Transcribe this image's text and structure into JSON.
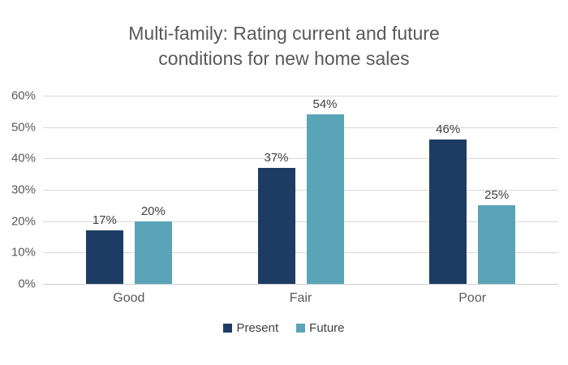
{
  "chart_data": {
    "type": "bar",
    "title": "Multi-family: Rating current and future conditions for new home sales",
    "categories": [
      "Good",
      "Fair",
      "Poor"
    ],
    "series": [
      {
        "name": "Present",
        "color": "#1C3C63",
        "values": [
          17,
          37,
          46
        ]
      },
      {
        "name": "Future",
        "color": "#5AA4B8",
        "values": [
          20,
          54,
          25
        ]
      }
    ],
    "value_suffix": "%",
    "ylabel": "",
    "xlabel": "",
    "ylim": [
      0,
      60
    ],
    "ytick_step": 10,
    "grid": true,
    "legend_position": "bottom",
    "colors": {
      "title_text": "#595959",
      "axis_text": "#595959",
      "value_label_text": "#404040",
      "gridline": "#d9d9d9",
      "background": "#ffffff"
    }
  }
}
